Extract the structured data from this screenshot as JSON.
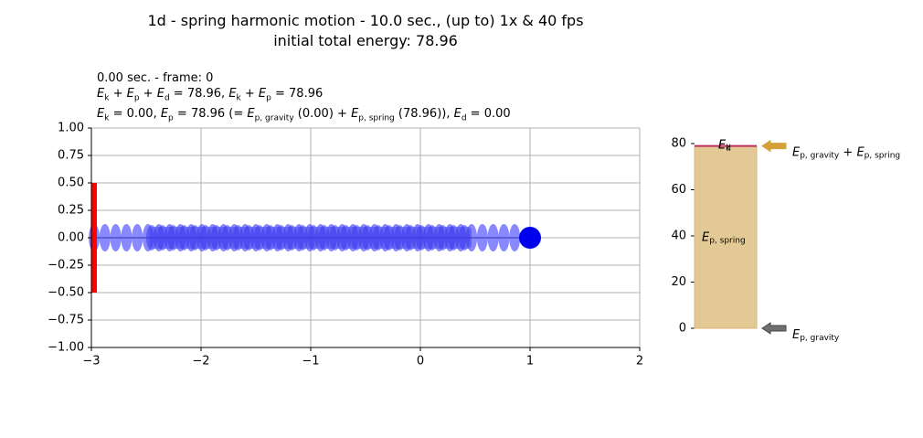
{
  "title_line1": "1d - spring harmonic motion - 10.0 sec., (up to) 1x & 40 fps",
  "title_line2": "initial total energy: 78.96",
  "info": {
    "time_frame": "0.00 sec. - frame: 0",
    "sum_all": "78.96",
    "sum_kp": "78.96",
    "ek": "0.00",
    "ep": "78.96",
    "ep_gravity": "0.00",
    "ep_spring": "78.96",
    "ed": "0.00"
  },
  "colors": {
    "wall": "#ff0000",
    "mass": "#0000ee",
    "spring": "#5555ff",
    "spring_bar": "#e3c995",
    "gravity_arrow": "#707070",
    "total_arrow": "#d4a03a",
    "total_line": "#c0305c"
  },
  "chart_data": [
    {
      "type": "scatter",
      "xlim": [
        -3,
        2
      ],
      "ylim": [
        -1,
        1
      ],
      "xticks": [
        "−3",
        "−2",
        "−1",
        "0",
        "1",
        "2"
      ],
      "yticks": [
        "1.00",
        "0.75",
        "0.50",
        "0.25",
        "0.00",
        "−0.25",
        "−0.50",
        "−0.75",
        "−1.00"
      ],
      "grid": true,
      "wall": {
        "x": -3,
        "y": [
          -0.5,
          0.5
        ]
      },
      "mass": {
        "x": 1.0,
        "y": 0.0
      },
      "spring_anchor": -3,
      "spring_rest_range": [
        -2.5,
        0.5
      ]
    },
    {
      "type": "bar",
      "ylim": [
        0,
        80
      ],
      "yticks": [
        "0",
        "20",
        "40",
        "60",
        "80"
      ],
      "ep_gravity": 0.0,
      "ep_spring": 78.96,
      "ek": 0.0,
      "ed": 0.0,
      "labels": {
        "spring": "E_p,spring",
        "ek": "E_k",
        "ed": "E_d",
        "top_arrow": "E_p,gravity + E_p,spring",
        "bottom_arrow": "E_p,gravity"
      }
    }
  ]
}
